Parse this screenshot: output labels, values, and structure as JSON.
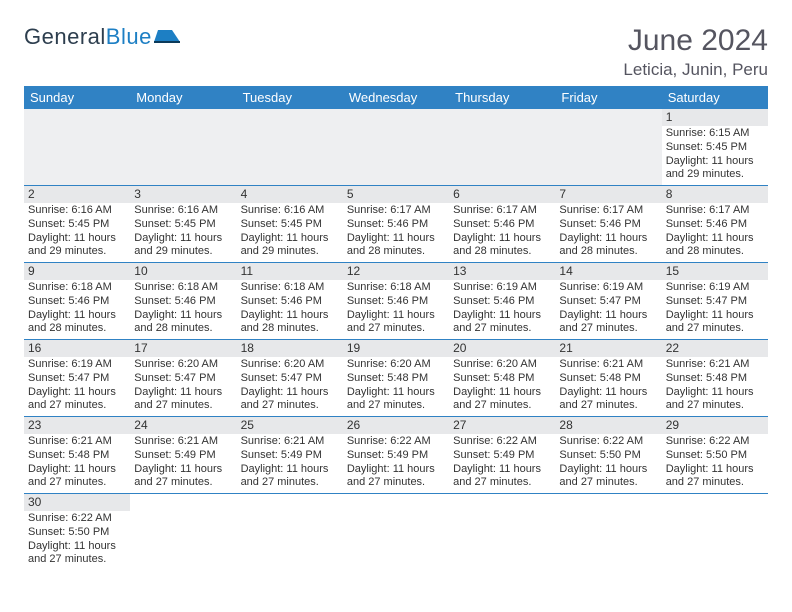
{
  "brand": {
    "part1": "General",
    "part2": "Blue"
  },
  "title": {
    "month": "June 2024",
    "location": "Leticia, Junin, Peru"
  },
  "colors": {
    "header_bg": "#3082c4",
    "header_fg": "#ffffff",
    "daynum_bg": "#e7e8ea",
    "row_border": "#3082c4",
    "blank_bg": "#eeeff1",
    "text": "#333333",
    "logo_dark": "#2d3e4e",
    "logo_accent": "#1d7fc4"
  },
  "day_headers": [
    "Sunday",
    "Monday",
    "Tuesday",
    "Wednesday",
    "Thursday",
    "Friday",
    "Saturday"
  ],
  "days": {
    "1": {
      "sunrise": "6:15 AM",
      "sunset": "5:45 PM",
      "daylight": "11 hours and 29 minutes."
    },
    "2": {
      "sunrise": "6:16 AM",
      "sunset": "5:45 PM",
      "daylight": "11 hours and 29 minutes."
    },
    "3": {
      "sunrise": "6:16 AM",
      "sunset": "5:45 PM",
      "daylight": "11 hours and 29 minutes."
    },
    "4": {
      "sunrise": "6:16 AM",
      "sunset": "5:45 PM",
      "daylight": "11 hours and 29 minutes."
    },
    "5": {
      "sunrise": "6:17 AM",
      "sunset": "5:46 PM",
      "daylight": "11 hours and 28 minutes."
    },
    "6": {
      "sunrise": "6:17 AM",
      "sunset": "5:46 PM",
      "daylight": "11 hours and 28 minutes."
    },
    "7": {
      "sunrise": "6:17 AM",
      "sunset": "5:46 PM",
      "daylight": "11 hours and 28 minutes."
    },
    "8": {
      "sunrise": "6:17 AM",
      "sunset": "5:46 PM",
      "daylight": "11 hours and 28 minutes."
    },
    "9": {
      "sunrise": "6:18 AM",
      "sunset": "5:46 PM",
      "daylight": "11 hours and 28 minutes."
    },
    "10": {
      "sunrise": "6:18 AM",
      "sunset": "5:46 PM",
      "daylight": "11 hours and 28 minutes."
    },
    "11": {
      "sunrise": "6:18 AM",
      "sunset": "5:46 PM",
      "daylight": "11 hours and 28 minutes."
    },
    "12": {
      "sunrise": "6:18 AM",
      "sunset": "5:46 PM",
      "daylight": "11 hours and 27 minutes."
    },
    "13": {
      "sunrise": "6:19 AM",
      "sunset": "5:46 PM",
      "daylight": "11 hours and 27 minutes."
    },
    "14": {
      "sunrise": "6:19 AM",
      "sunset": "5:47 PM",
      "daylight": "11 hours and 27 minutes."
    },
    "15": {
      "sunrise": "6:19 AM",
      "sunset": "5:47 PM",
      "daylight": "11 hours and 27 minutes."
    },
    "16": {
      "sunrise": "6:19 AM",
      "sunset": "5:47 PM",
      "daylight": "11 hours and 27 minutes."
    },
    "17": {
      "sunrise": "6:20 AM",
      "sunset": "5:47 PM",
      "daylight": "11 hours and 27 minutes."
    },
    "18": {
      "sunrise": "6:20 AM",
      "sunset": "5:47 PM",
      "daylight": "11 hours and 27 minutes."
    },
    "19": {
      "sunrise": "6:20 AM",
      "sunset": "5:48 PM",
      "daylight": "11 hours and 27 minutes."
    },
    "20": {
      "sunrise": "6:20 AM",
      "sunset": "5:48 PM",
      "daylight": "11 hours and 27 minutes."
    },
    "21": {
      "sunrise": "6:21 AM",
      "sunset": "5:48 PM",
      "daylight": "11 hours and 27 minutes."
    },
    "22": {
      "sunrise": "6:21 AM",
      "sunset": "5:48 PM",
      "daylight": "11 hours and 27 minutes."
    },
    "23": {
      "sunrise": "6:21 AM",
      "sunset": "5:48 PM",
      "daylight": "11 hours and 27 minutes."
    },
    "24": {
      "sunrise": "6:21 AM",
      "sunset": "5:49 PM",
      "daylight": "11 hours and 27 minutes."
    },
    "25": {
      "sunrise": "6:21 AM",
      "sunset": "5:49 PM",
      "daylight": "11 hours and 27 minutes."
    },
    "26": {
      "sunrise": "6:22 AM",
      "sunset": "5:49 PM",
      "daylight": "11 hours and 27 minutes."
    },
    "27": {
      "sunrise": "6:22 AM",
      "sunset": "5:49 PM",
      "daylight": "11 hours and 27 minutes."
    },
    "28": {
      "sunrise": "6:22 AM",
      "sunset": "5:50 PM",
      "daylight": "11 hours and 27 minutes."
    },
    "29": {
      "sunrise": "6:22 AM",
      "sunset": "5:50 PM",
      "daylight": "11 hours and 27 minutes."
    },
    "30": {
      "sunrise": "6:22 AM",
      "sunset": "5:50 PM",
      "daylight": "11 hours and 27 minutes."
    }
  },
  "labels": {
    "sunrise": "Sunrise:",
    "sunset": "Sunset:",
    "daylight": "Daylight:"
  },
  "layout": {
    "first_day_column": 6,
    "last_day": 30,
    "columns": 7
  }
}
